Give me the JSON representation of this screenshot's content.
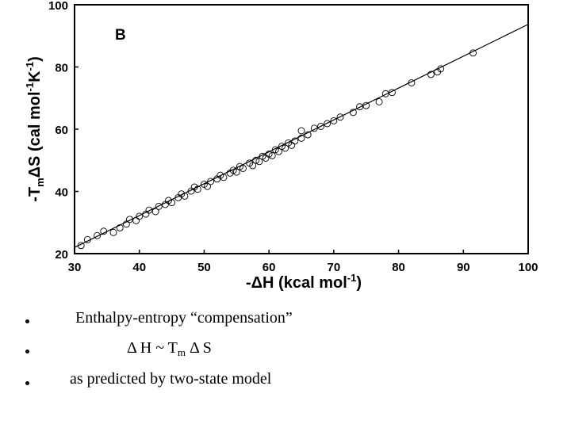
{
  "chart_data": {
    "type": "scatter",
    "title": "",
    "panel_label": "B",
    "xlabel": "-ΔH (kcal mol",
    "xlabel_sup": "-1",
    "xlabel_end": ")",
    "ylabel": "-T",
    "ylabel_sub": "m",
    "ylabel_mid": "ΔS (cal mol",
    "ylabel_sup1": "-1",
    "ylabel_k": "K",
    "ylabel_sup2": "-1",
    "ylabel_end": ")",
    "xlim": [
      30,
      100
    ],
    "ylim": [
      20,
      100
    ],
    "x_ticks": [
      30,
      40,
      50,
      60,
      70,
      80,
      90,
      100
    ],
    "y_ticks": [
      20,
      40,
      60,
      80,
      100
    ],
    "fit_line": {
      "x": [
        30,
        100
      ],
      "y": [
        22.0,
        93.7
      ]
    },
    "markers": "open circles",
    "series": [
      {
        "points": [
          [
            31,
            22.6
          ],
          [
            32,
            24.5
          ],
          [
            33.5,
            25.8
          ],
          [
            34.5,
            27.2
          ],
          [
            36,
            26.8
          ],
          [
            37,
            28.3
          ],
          [
            38,
            29.5
          ],
          [
            38.5,
            31.0
          ],
          [
            39.5,
            30.6
          ],
          [
            40,
            32.0
          ],
          [
            41,
            32.7
          ],
          [
            41.5,
            34.0
          ],
          [
            42.5,
            33.5
          ],
          [
            43,
            35.2
          ],
          [
            44,
            35.8
          ],
          [
            44.5,
            37.1
          ],
          [
            45,
            36.4
          ],
          [
            46,
            38.0
          ],
          [
            46.5,
            39.2
          ],
          [
            47,
            38.5
          ],
          [
            48,
            40.1
          ],
          [
            48.5,
            41.4
          ],
          [
            49,
            40.7
          ],
          [
            50,
            42.3
          ],
          [
            50.5,
            41.6
          ],
          [
            51,
            43.2
          ],
          [
            52,
            44.0
          ],
          [
            52.5,
            45.2
          ],
          [
            53,
            44.5
          ],
          [
            54,
            45.9
          ],
          [
            54.5,
            46.8
          ],
          [
            55,
            46.2
          ],
          [
            55.5,
            48.0
          ],
          [
            56,
            47.4
          ],
          [
            57,
            49.1
          ],
          [
            57.5,
            48.3
          ],
          [
            58,
            50.0
          ],
          [
            58.5,
            49.6
          ],
          [
            59,
            51.3
          ],
          [
            59.5,
            50.7
          ],
          [
            60,
            52.0
          ],
          [
            60.5,
            51.5
          ],
          [
            61,
            53.4
          ],
          [
            61.5,
            52.8
          ],
          [
            62,
            54.5
          ],
          [
            62.5,
            53.9
          ],
          [
            63,
            55.6
          ],
          [
            63.5,
            54.8
          ],
          [
            64,
            56.2
          ],
          [
            65,
            57.1
          ],
          [
            65,
            59.5
          ],
          [
            66,
            58.2
          ],
          [
            67,
            60.3
          ],
          [
            68,
            60.9
          ],
          [
            69,
            61.8
          ],
          [
            70,
            62.7
          ],
          [
            71,
            63.9
          ],
          [
            73,
            65.4
          ],
          [
            74,
            67.2
          ],
          [
            75,
            67.6
          ],
          [
            77,
            68.8
          ],
          [
            78,
            71.4
          ],
          [
            79,
            71.8
          ],
          [
            82,
            74.9
          ],
          [
            85,
            77.6
          ],
          [
            86,
            78.4
          ],
          [
            86.5,
            79.4
          ],
          [
            91.5,
            84.5
          ]
        ]
      }
    ]
  },
  "bullets": [
    {
      "text": "Enthalpy-entropy “compensation”"
    },
    {
      "delta1": "Δ",
      "h": " H ~ T",
      "sub": "m",
      "delta2": " Δ",
      "s": " S"
    },
    {
      "text": "as predicted by two-state model"
    }
  ]
}
